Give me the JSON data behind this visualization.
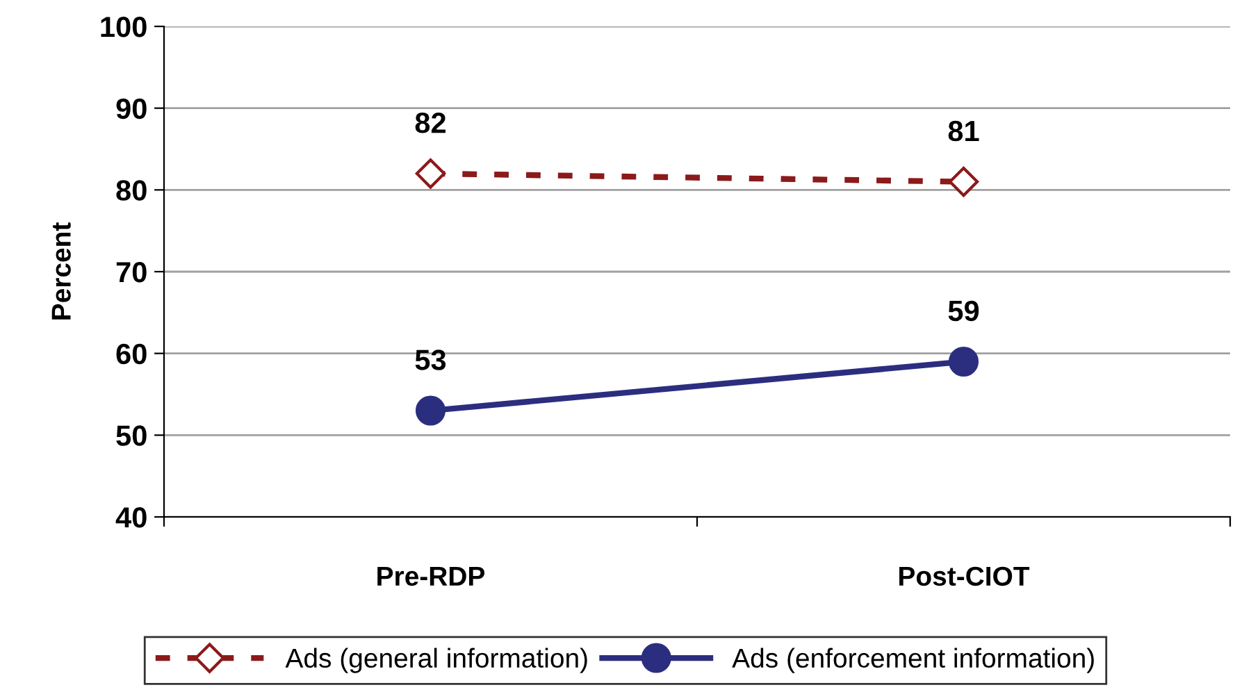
{
  "chart_data": {
    "type": "line",
    "ylabel": "Percent",
    "categories": [
      "Pre-RDP",
      "Post-CIOT"
    ],
    "series": [
      {
        "name": "Ads (general information)",
        "color": "#8b1a1a",
        "values": [
          82,
          81
        ],
        "marker": "diamond",
        "line_style": "dashed"
      },
      {
        "name": "Ads (enforcement information)",
        "color": "#2b2e7f",
        "values": [
          53,
          59
        ],
        "marker": "circle",
        "line_style": "solid"
      }
    ],
    "ylim": [
      40,
      100
    ],
    "yticks": [
      40,
      50,
      60,
      70,
      80,
      90,
      100
    ],
    "grid": "y",
    "legend": "bottom",
    "data_labels": true
  }
}
